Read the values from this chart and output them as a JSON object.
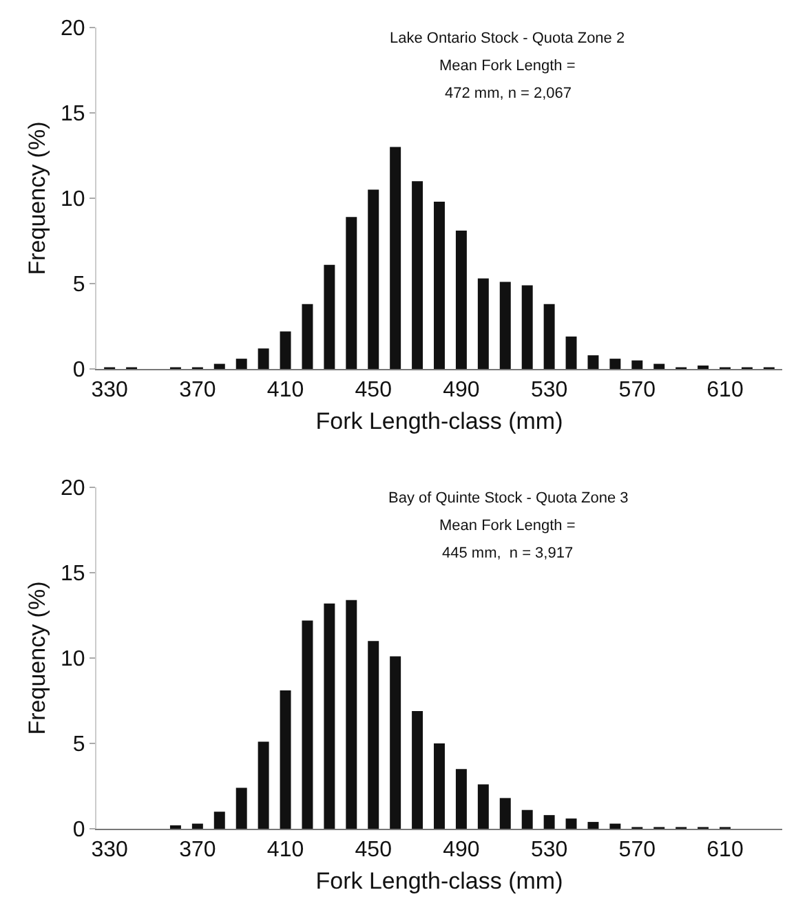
{
  "chart_data": [
    {
      "type": "bar",
      "xlabel": "Fork Length-class (mm)",
      "ylabel": "Frequency (%)",
      "annotations": [
        "Lake Ontario Stock - Quota Zone 2",
        "Mean Fork Length =",
        "472 mm, n = 2,067"
      ],
      "categories": [
        "330",
        null,
        null,
        null,
        "370",
        null,
        null,
        null,
        "410",
        null,
        null,
        null,
        "450",
        null,
        null,
        null,
        "490",
        null,
        null,
        null,
        "530",
        null,
        null,
        null,
        "570",
        null,
        null,
        null,
        "610",
        null,
        null
      ],
      "values": [
        0.1,
        0.1,
        0,
        0.1,
        0.1,
        0.3,
        0.6,
        1.2,
        2.2,
        3.8,
        6.1,
        8.9,
        10.5,
        13,
        11,
        9.8,
        8.1,
        5.3,
        5.1,
        4.9,
        3.8,
        1.9,
        0.8,
        0.6,
        0.5,
        0.3,
        0.1,
        0.2,
        0.1,
        0.1,
        0.1
      ],
      "color": "#111111",
      "ylim": [
        0,
        20
      ],
      "yticks": [
        0,
        5,
        10,
        15,
        20
      ]
    },
    {
      "type": "bar",
      "xlabel": "Fork Length-class (mm)",
      "ylabel": "Frequency (%)",
      "annotations": [
        "Bay of Quinte Stock - Quota Zone 3",
        "Mean Fork Length =",
        "445 mm,  n = 3,917"
      ],
      "categories": [
        "330",
        null,
        null,
        null,
        "370",
        null,
        null,
        null,
        "410",
        null,
        null,
        null,
        "450",
        null,
        null,
        null,
        "490",
        null,
        null,
        null,
        "530",
        null,
        null,
        null,
        "570",
        null,
        null,
        null,
        "610",
        null,
        null
      ],
      "values": [
        0,
        0,
        0,
        0.2,
        0.3,
        1,
        2.4,
        5.1,
        8.1,
        12.2,
        13.2,
        13.4,
        11,
        10.1,
        6.9,
        5,
        3.5,
        2.6,
        1.8,
        1.1,
        0.8,
        0.6,
        0.4,
        0.3,
        0.1,
        0.1,
        0.1,
        0.1,
        0.1,
        0,
        0
      ],
      "color": "#111111",
      "ylim": [
        0,
        20
      ],
      "yticks": [
        0,
        5,
        10,
        15,
        20
      ]
    }
  ]
}
